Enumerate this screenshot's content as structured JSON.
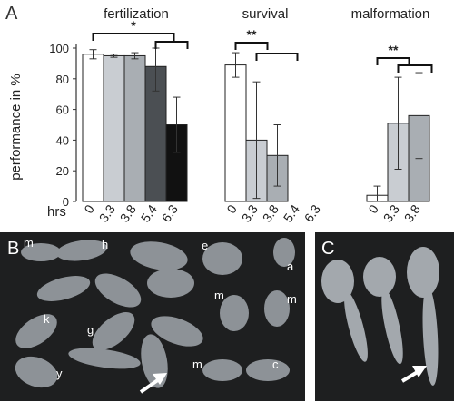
{
  "chart_data": {
    "type": "bar",
    "panel_label": "A",
    "ylabel": "performance in  %",
    "ylim": [
      0,
      100
    ],
    "yticks": [
      "0",
      "20",
      "40",
      "60",
      "80",
      "100"
    ],
    "x_axis_label": "hrs",
    "groups": [
      {
        "title": "fertilization",
        "categories": [
          "0",
          "3.3",
          "3.8",
          "5.4",
          "6.3"
        ],
        "values": [
          96,
          95,
          95,
          88,
          50
        ],
        "errors": [
          3,
          1,
          2,
          16,
          18
        ],
        "colors": [
          "#ffffff",
          "#c9cdd2",
          "#a9aeb3",
          "#4b4f53",
          "#111111"
        ],
        "significance": "*"
      },
      {
        "title": "survival",
        "categories": [
          "0",
          "3.3",
          "3.8",
          "5.4",
          "6.3"
        ],
        "values": [
          89,
          40,
          30,
          null,
          null
        ],
        "errors": [
          8,
          38,
          20,
          null,
          null
        ],
        "colors": [
          "#ffffff",
          "#c9cdd2",
          "#a9aeb3",
          "#4b4f53",
          "#111111"
        ],
        "significance": "**"
      },
      {
        "title": "malformation",
        "categories": [
          "0",
          "3.3",
          "3.8"
        ],
        "values": [
          4,
          51,
          56
        ],
        "errors": [
          6,
          30,
          28
        ],
        "colors": [
          "#ffffff",
          "#c9cdd2",
          "#a9aeb3"
        ],
        "significance": "**"
      }
    ]
  },
  "photos": {
    "panel_b_label": "B",
    "panel_c_label": "C",
    "larva_labels": [
      "m",
      "h",
      "e",
      "a",
      "m",
      "m",
      "k",
      "g",
      "y",
      "m",
      "c"
    ]
  }
}
